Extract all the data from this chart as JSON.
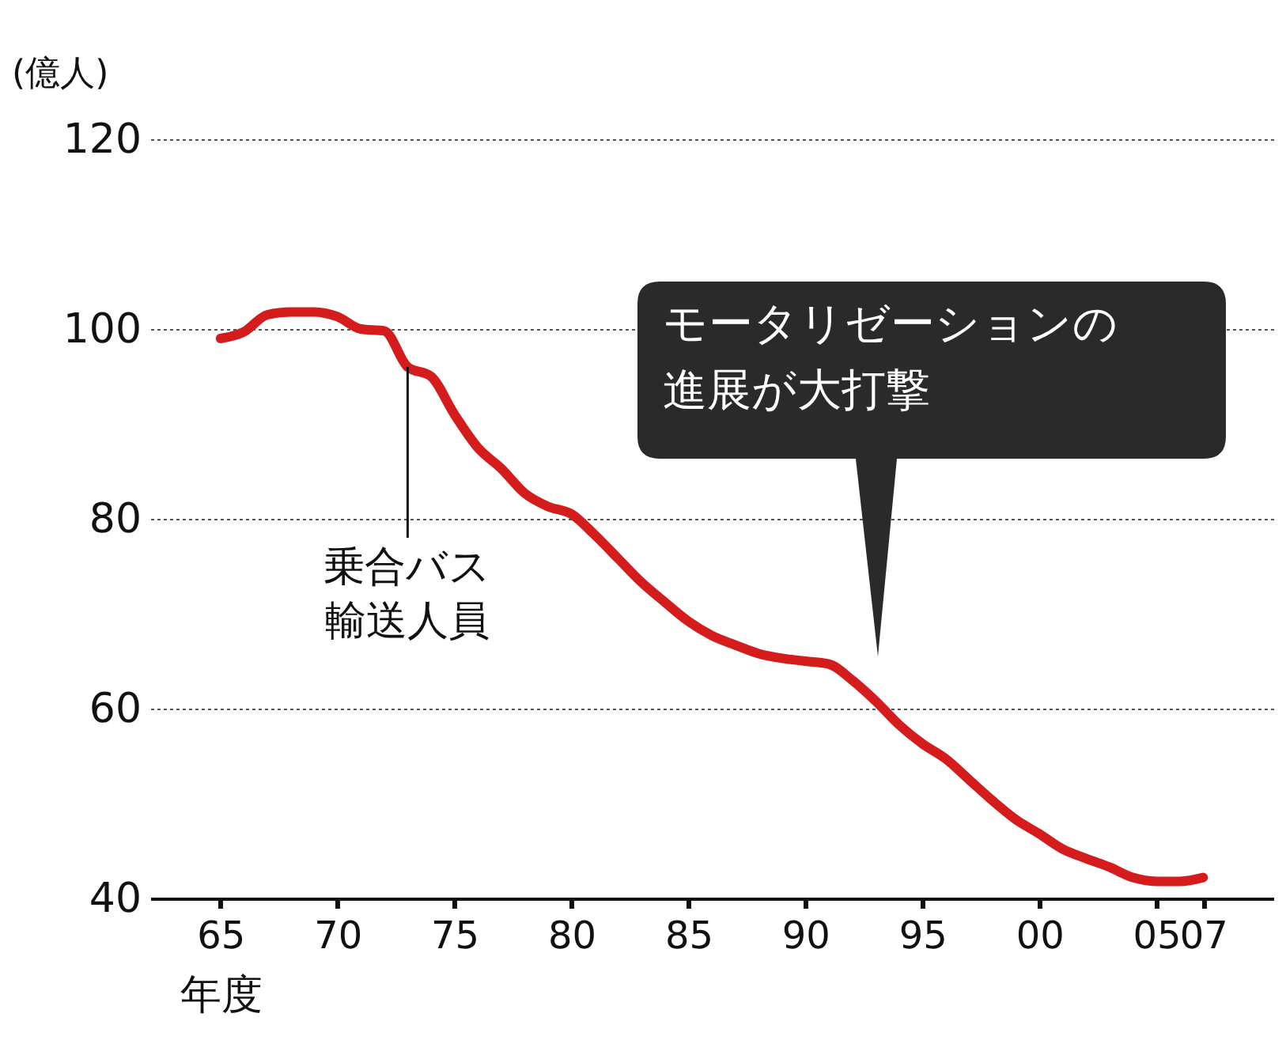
{
  "chart_data": {
    "type": "line",
    "ylabel": "(億人)",
    "xlabel": "年度",
    "x": [
      1965,
      1966,
      1967,
      1968,
      1969,
      1970,
      1971,
      1972,
      1973,
      1974,
      1975,
      1976,
      1977,
      1978,
      1979,
      1980,
      1981,
      1982,
      1983,
      1984,
      1985,
      1986,
      1987,
      1988,
      1989,
      1990,
      1991,
      1992,
      1993,
      1994,
      1995,
      1996,
      1997,
      1998,
      1999,
      2000,
      2001,
      2002,
      2003,
      2004,
      2005,
      2006,
      2007
    ],
    "series": [
      {
        "name": "乗合バス輸送人員",
        "color": "#d41c1c",
        "values": [
          99,
          99.7,
          101.5,
          101.8,
          101.8,
          101.3,
          100,
          99.8,
          96,
          95,
          91,
          87.5,
          85.3,
          82.7,
          81.3,
          80.5,
          78.3,
          75.8,
          73.3,
          71.2,
          69.2,
          67.7,
          66.7,
          65.8,
          65.3,
          65,
          64.7,
          63,
          60.8,
          58.3,
          56.3,
          54.7,
          52.5,
          50.3,
          48.3,
          46.8,
          45.2,
          44.2,
          43.3,
          42.2,
          41.8,
          41.8,
          42.2
        ]
      }
    ],
    "xlim": [
      1962,
      2010
    ],
    "xticks": [
      {
        "value": 1965,
        "label": "65"
      },
      {
        "value": 1970,
        "label": "70"
      },
      {
        "value": 1975,
        "label": "75"
      },
      {
        "value": 1980,
        "label": "80"
      },
      {
        "value": 1985,
        "label": "85"
      },
      {
        "value": 1990,
        "label": "90"
      },
      {
        "value": 1995,
        "label": "95"
      },
      {
        "value": 2000,
        "label": "00"
      },
      {
        "value": 2005,
        "label": "05"
      },
      {
        "value": 2007,
        "label": "07"
      }
    ],
    "ylim": [
      40,
      120
    ],
    "yticks": [
      40,
      60,
      80,
      100,
      120
    ],
    "grid": "y",
    "annotations": [
      "モータリゼーションの進展が大打撃"
    ]
  }
}
